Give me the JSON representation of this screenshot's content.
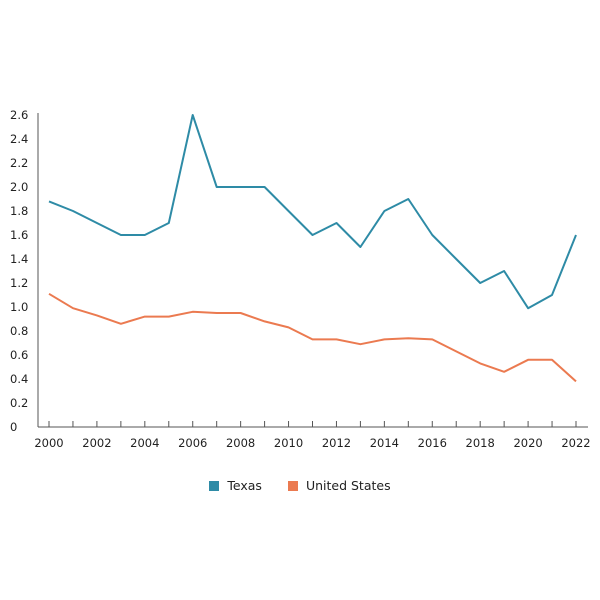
{
  "chart_data": {
    "type": "line",
    "title": "",
    "xlabel": "",
    "ylabel": "",
    "x": [
      2000,
      2001,
      2002,
      2003,
      2004,
      2005,
      2006,
      2007,
      2008,
      2009,
      2010,
      2011,
      2012,
      2013,
      2014,
      2015,
      2016,
      2017,
      2018,
      2019,
      2020,
      2021,
      2022
    ],
    "xlim": [
      2000,
      2022
    ],
    "ylim": [
      0,
      2.6
    ],
    "x_ticks": [
      "2000",
      "2002",
      "2004",
      "2006",
      "2008",
      "2010",
      "2012",
      "2014",
      "2016",
      "2018",
      "2020",
      "2022"
    ],
    "y_ticks": [
      "0",
      "0.2",
      "0.4",
      "0.6",
      "0.8",
      "1.0",
      "1.2",
      "1.4",
      "1.6",
      "1.8",
      "2.0",
      "2.2",
      "2.4",
      "2.6"
    ],
    "grid": false,
    "legend_position": "bottom",
    "series": [
      {
        "name": "Texas",
        "color": "#2E8BA6",
        "values": [
          1.88,
          1.8,
          1.7,
          1.6,
          1.6,
          1.7,
          2.6,
          2.0,
          2.0,
          2.0,
          1.8,
          1.6,
          1.7,
          1.5,
          1.8,
          1.9,
          1.6,
          1.4,
          1.2,
          1.3,
          0.99,
          1.1,
          1.6
        ]
      },
      {
        "name": "United States",
        "color": "#EB7A50",
        "values": [
          1.11,
          0.99,
          0.93,
          0.86,
          0.92,
          0.92,
          0.96,
          0.95,
          0.95,
          0.88,
          0.83,
          0.73,
          0.73,
          0.69,
          0.73,
          0.74,
          0.73,
          0.63,
          0.53,
          0.46,
          0.56,
          0.56,
          0.38
        ]
      }
    ]
  }
}
